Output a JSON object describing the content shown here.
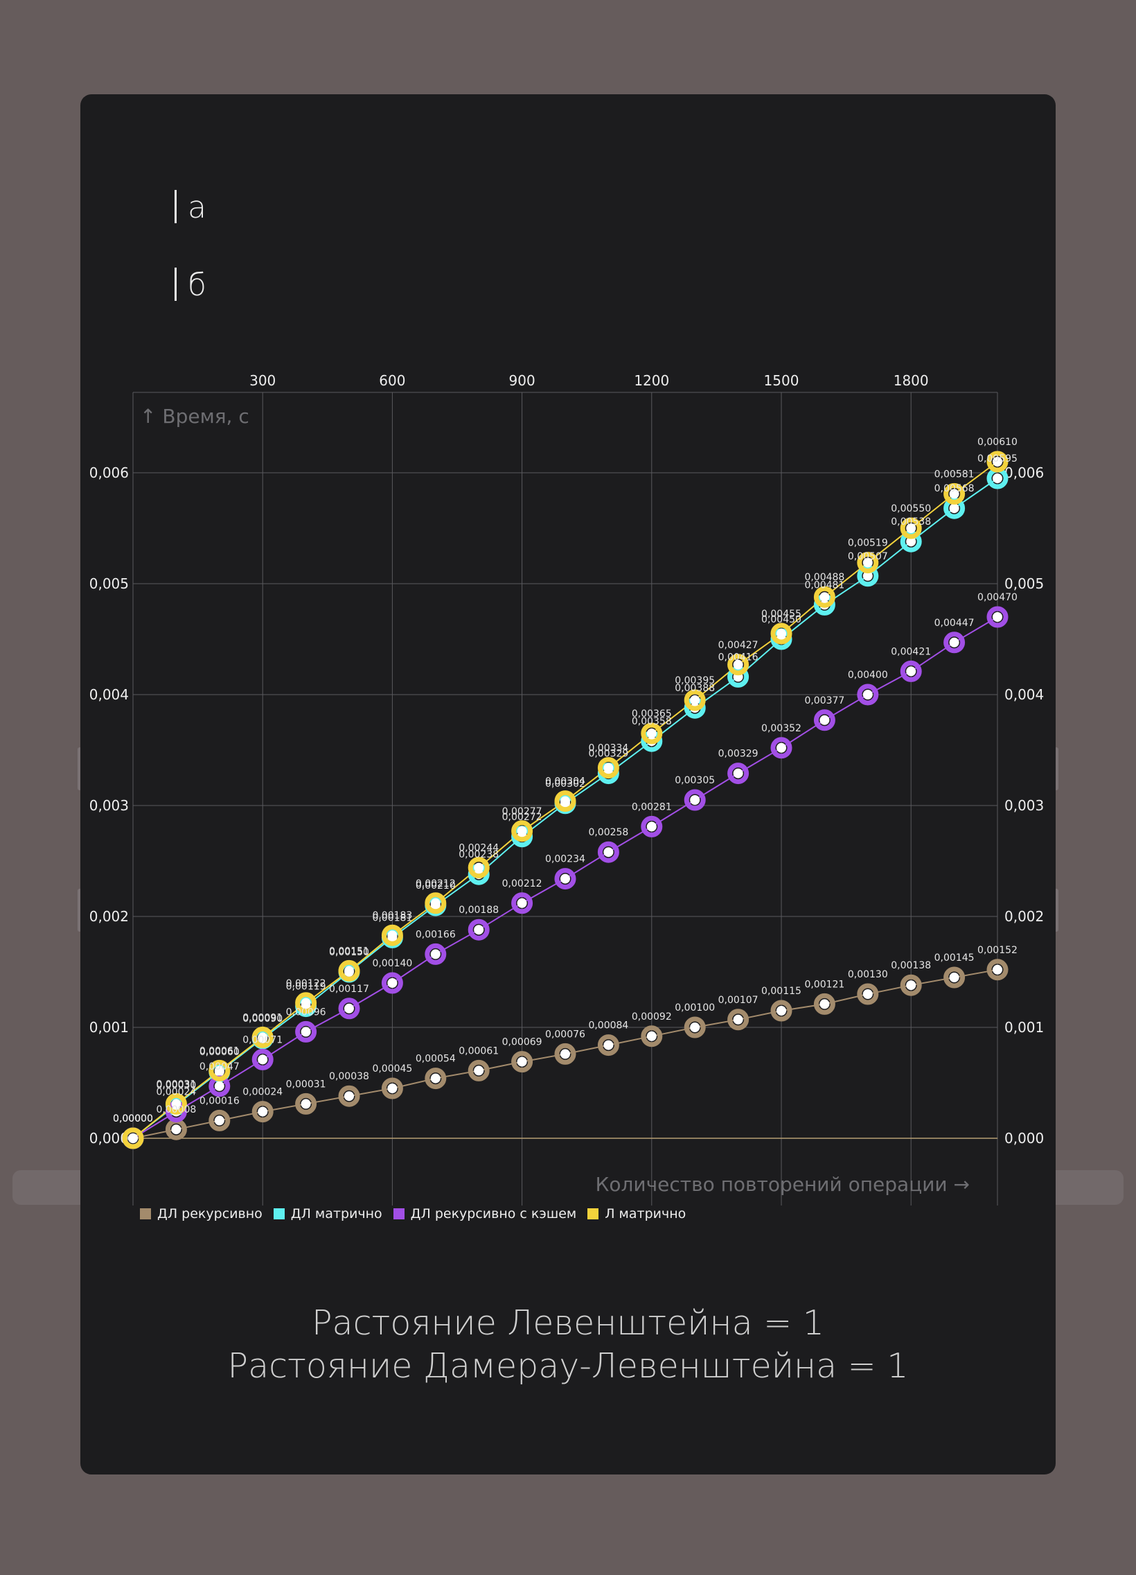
{
  "header": {
    "option_a": "а",
    "option_b": "б"
  },
  "title_lines": [
    "Растояние Левенштейна = 1",
    "Растояние Дамерау-Левенштейна = 1"
  ],
  "chart_data": {
    "type": "line",
    "ylabel": "↑ Время, с",
    "xlabel": "Количество повторений операции →",
    "x_ticks": [
      "300",
      "600",
      "900",
      "1200",
      "1500",
      "1800"
    ],
    "x_tick_values": [
      300,
      600,
      900,
      1200,
      1500,
      1800
    ],
    "y_ticks": [
      "0,000",
      "0,001",
      "0,002",
      "0,003",
      "0,004",
      "0,005",
      "0,006"
    ],
    "y_tick_values": [
      0,
      0.001,
      0.002,
      0.003,
      0.004,
      0.005,
      0.006
    ],
    "xlim": [
      0,
      2000
    ],
    "ylim": [
      -0.0006,
      0.0067
    ],
    "x": [
      0,
      100,
      200,
      300,
      400,
      500,
      600,
      700,
      800,
      900,
      1000,
      1100,
      1200,
      1300,
      1400,
      1500,
      1600,
      1700,
      1800,
      1900,
      2000
    ],
    "grid": true,
    "legend_position": "bottom-left",
    "series": [
      {
        "name": "ДЛ рекурсивно",
        "color": "#a38b6c",
        "values": [
          0.0,
          8e-05,
          0.00016,
          0.00024,
          0.00031,
          0.00038,
          0.00045,
          0.00054,
          0.00061,
          0.00069,
          0.00076,
          0.00084,
          0.00092,
          0.001,
          0.00107,
          0.00115,
          0.00121,
          0.0013,
          0.00138,
          0.00145,
          0.00152
        ],
        "labels": [
          "0,00000",
          "0,00008",
          "0,00016",
          "0,00024",
          "0,00031",
          "0,00038",
          "0,00045",
          "0,00054",
          "0,00061",
          "0,00069",
          "0,00076",
          "0,00084",
          "0,00092",
          "0,00100",
          "0,00107",
          "0,00115",
          "0,00121",
          "0,00130",
          "0,00138",
          "0,00145",
          "0,00152"
        ]
      },
      {
        "name": "ДЛ матрично",
        "color": "#5ef0f0",
        "values": [
          0.0,
          0.0003,
          0.0006,
          0.0009,
          0.00119,
          0.0015,
          0.00181,
          0.0021,
          0.00238,
          0.00272,
          0.00302,
          0.00329,
          0.00358,
          0.00388,
          0.00416,
          0.0045,
          0.00481,
          0.00507,
          0.00538,
          0.00568,
          0.00595
        ],
        "labels": [
          "0,00000",
          "0,00030",
          "0,00060",
          "0,00090",
          "0,00119",
          "0,00150",
          "0,00181",
          "0,00210",
          "0,00238",
          "0,00272",
          "0,00302",
          "0,00329",
          "0,00358",
          "0,00388",
          "0,00416",
          "0,00450",
          "0,00481",
          "0,00507",
          "0,00538",
          "0,00568",
          "0,00595"
        ]
      },
      {
        "name": "ДЛ рекурсивно с кэшем",
        "color": "#a24fe6",
        "values": [
          0.0,
          0.00024,
          0.00047,
          0.00071,
          0.00096,
          0.00117,
          0.0014,
          0.00166,
          0.00188,
          0.00212,
          0.00234,
          0.00258,
          0.00281,
          0.00305,
          0.00329,
          0.00352,
          0.00377,
          0.004,
          0.00421,
          0.00447,
          0.0047
        ],
        "labels": [
          "0,00000",
          "0,00024",
          "0,00047",
          "0,00071",
          "0,00096",
          "0,00117",
          "0,00140",
          "0,00166",
          "0,00188",
          "0,00212",
          "0,00234",
          "0,00258",
          "0,00281",
          "0,00305",
          "0,00329",
          "0,00352",
          "0,00377",
          "0,00400",
          "0,00421",
          "0,00447",
          "0,00470"
        ]
      },
      {
        "name": "Л матрично",
        "color": "#f3d23c",
        "values": [
          0.0,
          0.00031,
          0.00061,
          0.00091,
          0.00122,
          0.00151,
          0.00183,
          0.00212,
          0.00244,
          0.00277,
          0.00304,
          0.00334,
          0.00365,
          0.00395,
          0.00427,
          0.00455,
          0.00488,
          0.00519,
          0.0055,
          0.00581,
          0.0061
        ],
        "labels": [
          "0,00000",
          "0,00031",
          "0,00061",
          "0,00091",
          "0,00122",
          "0,00151",
          "0,00183",
          "0,00212",
          "0,00244",
          "0,00277",
          "0,00304",
          "0,00334",
          "0,00365",
          "0,00395",
          "0,00427",
          "0,00455",
          "0,00488",
          "0,00519",
          "0,00550",
          "0,00581",
          "0,00610"
        ]
      }
    ]
  }
}
